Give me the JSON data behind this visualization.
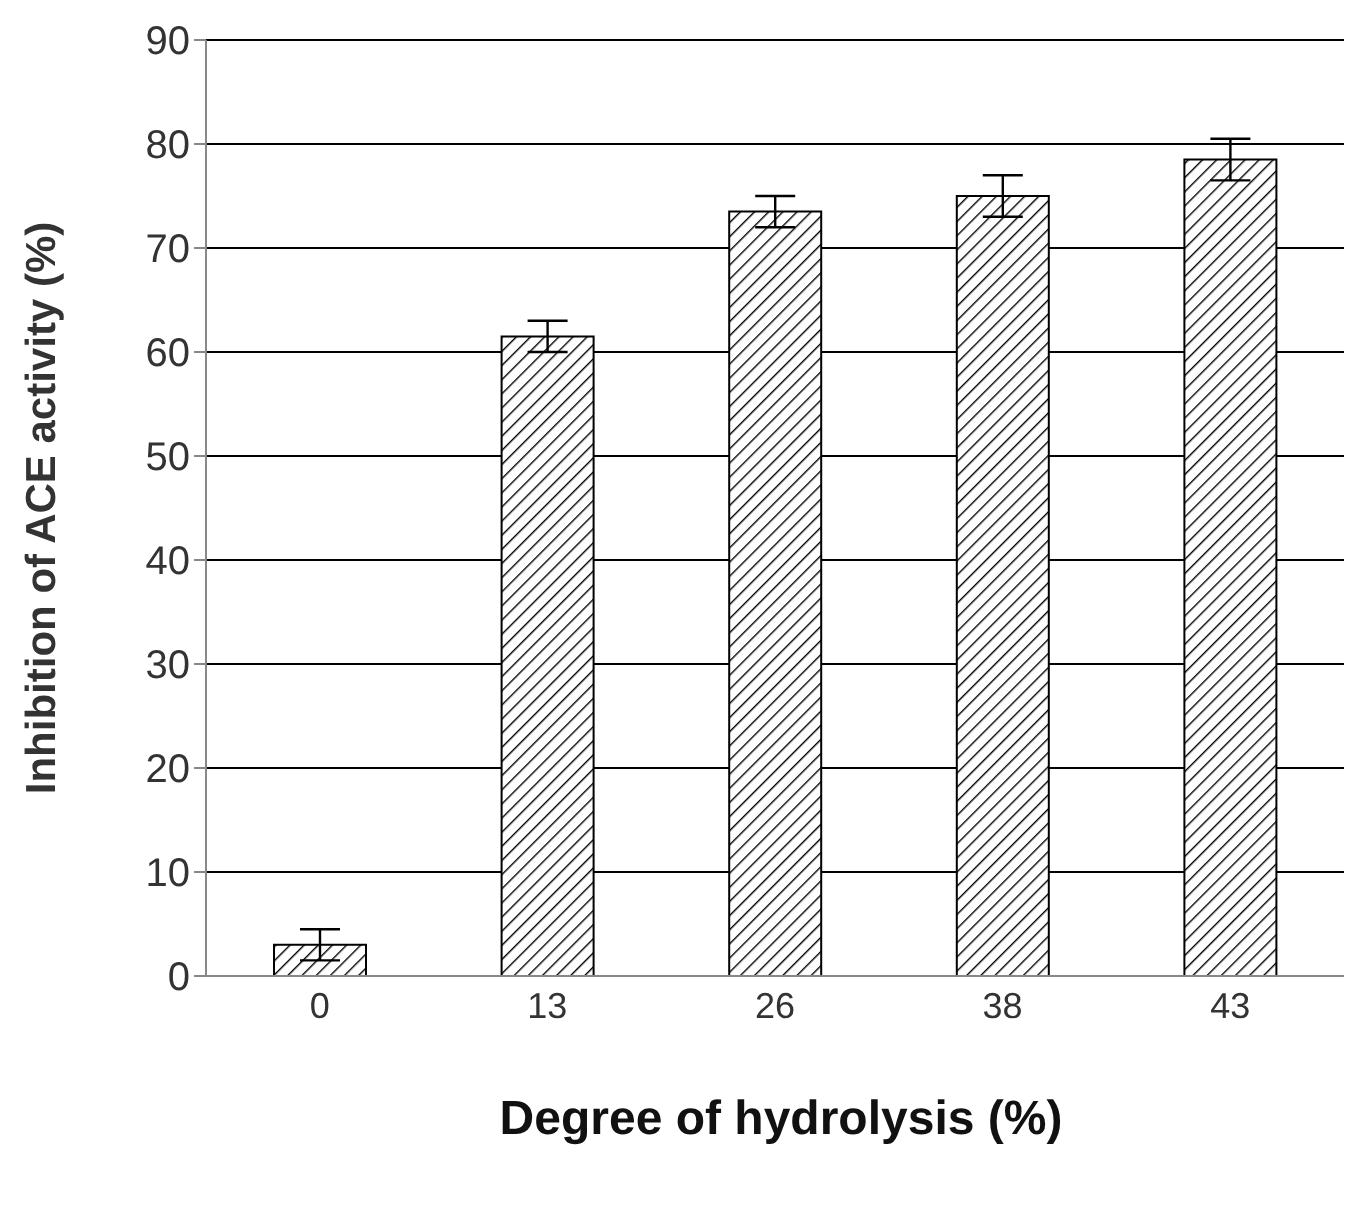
{
  "chart_data": {
    "type": "bar",
    "xlabel": "Degree of hydrolysis (%)",
    "ylabel": "Inhibition of ACE activity (%)",
    "categories": [
      "0",
      "13",
      "26",
      "38",
      "43"
    ],
    "values": [
      3,
      61.5,
      73.5,
      75,
      78.5
    ],
    "errors": [
      1.5,
      1.5,
      1.5,
      2,
      2
    ],
    "color": "#000000",
    "ylim": [
      0,
      90
    ],
    "yticks": [
      0,
      10,
      20,
      30,
      40,
      50,
      60,
      70,
      80,
      90
    ],
    "grid": "y"
  }
}
